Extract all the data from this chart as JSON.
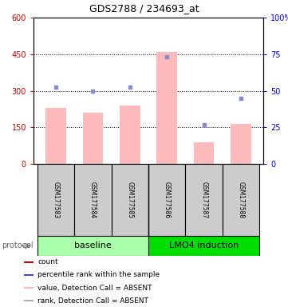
{
  "title": "GDS2788 / 234693_at",
  "samples": [
    "GSM177583",
    "GSM177584",
    "GSM177585",
    "GSM177586",
    "GSM177587",
    "GSM177588"
  ],
  "bar_values": [
    230,
    210,
    240,
    460,
    90,
    165
  ],
  "scatter_values_left": [
    315,
    300,
    315,
    440,
    160,
    270
  ],
  "bar_color": "#ffbbbb",
  "scatter_color": "#8888cc",
  "ylim_left": [
    0,
    600
  ],
  "ylim_right": [
    0,
    100
  ],
  "yticks_left": [
    0,
    150,
    300,
    450,
    600
  ],
  "yticks_right": [
    0,
    25,
    50,
    75,
    100
  ],
  "ytick_labels_left": [
    "0",
    "150",
    "300",
    "450",
    "600"
  ],
  "ytick_labels_right": [
    "0",
    "25",
    "50",
    "75",
    "100%"
  ],
  "left_tick_color": "#cc0000",
  "right_tick_color": "#0000cc",
  "group1_label": "baseline",
  "group2_label": "LMO4 induction",
  "group1_color": "#aaffaa",
  "group2_color": "#00dd00",
  "protocol_label": "protocol",
  "bar_width": 0.55,
  "legend_labels": [
    "count",
    "percentile rank within the sample",
    "value, Detection Call = ABSENT",
    "rank, Detection Call = ABSENT"
  ],
  "legend_colors": [
    "#cc0000",
    "#4444cc",
    "#ffbbbb",
    "#aaaacc"
  ]
}
